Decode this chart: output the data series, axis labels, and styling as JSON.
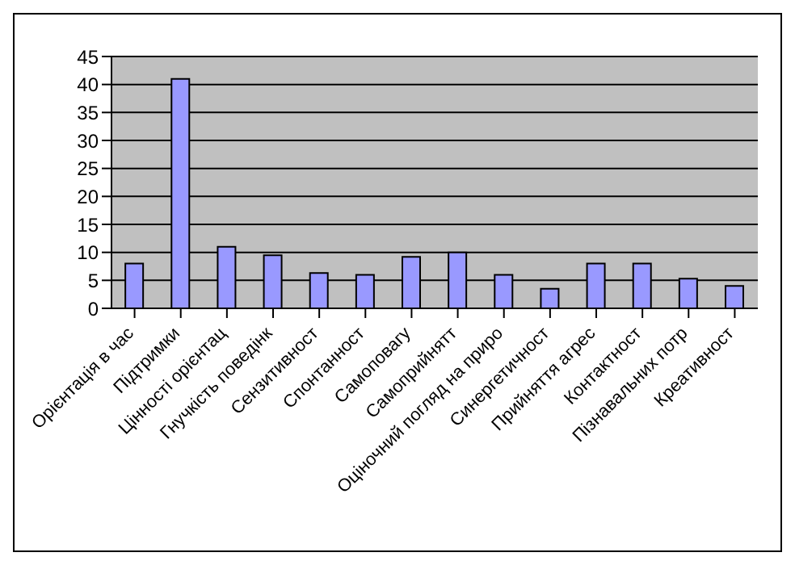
{
  "chart_data": {
    "type": "bar",
    "categories": [
      "Орієнтація в час",
      "Підтримки",
      "Цінності орієнтац",
      "Гнучкість поведінк",
      "Сензитивност",
      "Спонтанност",
      "Самоповагу",
      "Самоприйнятт",
      "Оціночний погляд на приро",
      "Синергетичност",
      "Прийняття агрес",
      "Контактност",
      "Пізнавальних потр",
      "Креативност"
    ],
    "values": [
      8,
      41,
      11,
      9.5,
      6.3,
      6,
      9.2,
      10,
      6,
      3.5,
      8,
      8,
      5.3,
      4
    ],
    "color": "#9999ff",
    "ylim": [
      0,
      45
    ],
    "yticks": [
      0,
      5,
      10,
      15,
      20,
      25,
      30,
      35,
      40,
      45
    ],
    "grid": "y"
  }
}
